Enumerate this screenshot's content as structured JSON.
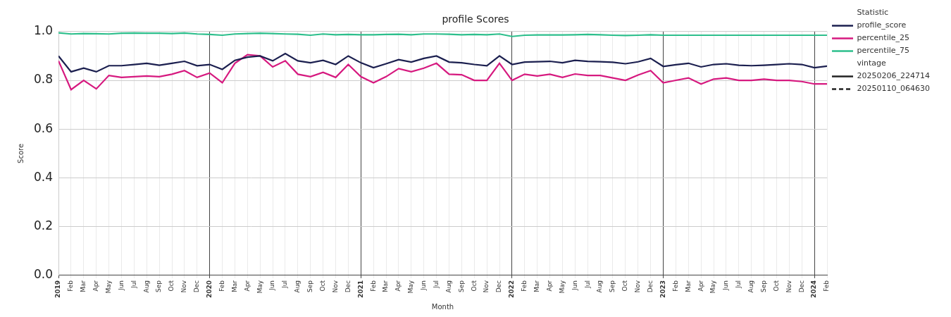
{
  "chart_data": {
    "type": "line",
    "title": "profile Scores",
    "x_label": "Month",
    "y_label": "Score",
    "categories": [
      "2019",
      "Feb",
      "Mar",
      "Apr",
      "May",
      "Jun",
      "Jul",
      "Aug",
      "Sep",
      "Oct",
      "Nov",
      "Dec",
      "2020",
      "Feb",
      "Mar",
      "Apr",
      "May",
      "Jun",
      "Jul",
      "Aug",
      "Sep",
      "Oct",
      "Nov",
      "Dec",
      "2021",
      "Feb",
      "Mar",
      "Apr",
      "May",
      "Jun",
      "Jul",
      "Aug",
      "Sep",
      "Oct",
      "Nov",
      "Dec",
      "2022",
      "Feb",
      "Mar",
      "Apr",
      "May",
      "Jun",
      "Jul",
      "Aug",
      "Sep",
      "Oct",
      "Nov",
      "Dec",
      "2023",
      "Feb",
      "Mar",
      "Apr",
      "May",
      "Jun",
      "Jul",
      "Aug",
      "Sep",
      "Oct",
      "Nov",
      "Dec",
      "2024",
      "Feb"
    ],
    "series": [
      {
        "name": "profile_score",
        "color": "#1b1f4f",
        "line_style": "solid",
        "values": [
          0.9,
          0.835,
          0.85,
          0.835,
          0.86,
          0.86,
          0.865,
          0.87,
          0.862,
          0.87,
          0.878,
          0.86,
          0.865,
          0.845,
          0.882,
          0.895,
          0.9,
          0.88,
          0.91,
          0.88,
          0.872,
          0.882,
          0.865,
          0.9,
          0.872,
          0.852,
          0.868,
          0.885,
          0.875,
          0.89,
          0.9,
          0.875,
          0.872,
          0.865,
          0.86,
          0.9,
          0.865,
          0.875,
          0.876,
          0.878,
          0.872,
          0.882,
          0.878,
          0.876,
          0.874,
          0.868,
          0.876,
          0.89,
          0.857,
          0.864,
          0.87,
          0.855,
          0.865,
          0.868,
          0.862,
          0.86,
          0.862,
          0.865,
          0.868,
          0.865,
          0.852,
          0.858
        ]
      },
      {
        "name": "percentile_25",
        "color": "#d6197f",
        "line_style": "solid",
        "values": [
          0.88,
          0.762,
          0.8,
          0.765,
          0.82,
          0.812,
          0.815,
          0.818,
          0.815,
          0.825,
          0.84,
          0.812,
          0.83,
          0.79,
          0.87,
          0.905,
          0.9,
          0.855,
          0.88,
          0.825,
          0.815,
          0.833,
          0.812,
          0.865,
          0.815,
          0.79,
          0.815,
          0.848,
          0.835,
          0.85,
          0.87,
          0.825,
          0.823,
          0.8,
          0.8,
          0.87,
          0.8,
          0.825,
          0.818,
          0.825,
          0.812,
          0.826,
          0.82,
          0.82,
          0.81,
          0.8,
          0.822,
          0.84,
          0.79,
          0.8,
          0.81,
          0.785,
          0.805,
          0.81,
          0.8,
          0.8,
          0.805,
          0.8,
          0.8,
          0.795,
          0.785,
          0.785
        ]
      },
      {
        "name": "percentile_75",
        "color": "#2dbf8c",
        "line_style": "solid",
        "values": [
          0.995,
          0.99,
          0.992,
          0.991,
          0.99,
          0.993,
          0.994,
          0.993,
          0.993,
          0.992,
          0.994,
          0.99,
          0.988,
          0.985,
          0.99,
          0.992,
          0.993,
          0.992,
          0.99,
          0.989,
          0.985,
          0.99,
          0.987,
          0.988,
          0.987,
          0.987,
          0.988,
          0.989,
          0.987,
          0.99,
          0.99,
          0.989,
          0.987,
          0.988,
          0.987,
          0.99,
          0.98,
          0.985,
          0.986,
          0.986,
          0.986,
          0.987,
          0.988,
          0.987,
          0.985,
          0.984,
          0.985,
          0.987,
          0.985,
          0.985,
          0.985,
          0.985,
          0.985,
          0.985,
          0.985,
          0.985,
          0.985,
          0.985,
          0.985,
          0.985,
          0.985,
          0.985
        ]
      }
    ],
    "legend_title": "Statistic",
    "vintage_title": "vintage",
    "vintages": [
      {
        "name": "20250206_224714",
        "line_style": "solid"
      },
      {
        "name": "20250110_064630",
        "line_style": "dashed"
      }
    ],
    "legend": "right",
    "ylim": [
      0,
      1
    ],
    "yticks": [
      {
        "value": 0,
        "label": "0.0"
      },
      0.2,
      0.4,
      0.6,
      0.8,
      {
        "value": 1,
        "label": "1.0"
      }
    ],
    "grid": true
  }
}
